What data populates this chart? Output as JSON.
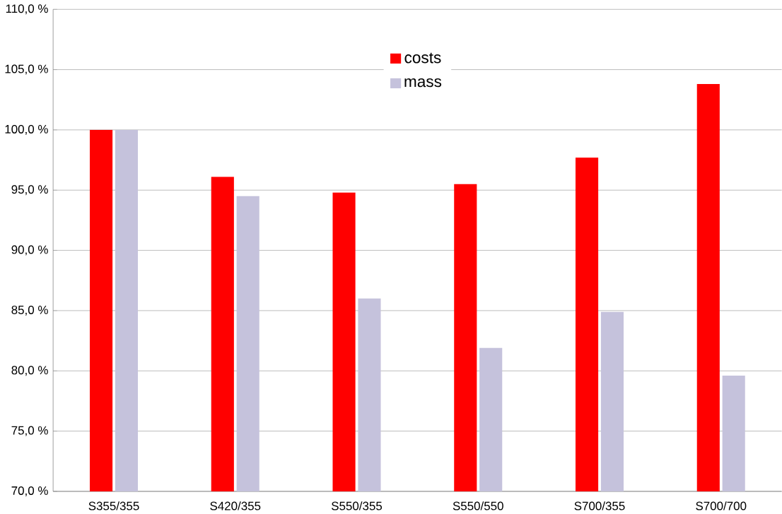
{
  "chart_data": {
    "type": "bar",
    "categories": [
      "S355/355",
      "S420/355",
      "S550/355",
      "S550/550",
      "S700/355",
      "S700/700"
    ],
    "series": [
      {
        "name": "costs",
        "color": "#ff0000",
        "values": [
          100.0,
          96.1,
          94.8,
          95.5,
          97.7,
          103.8
        ]
      },
      {
        "name": "mass",
        "color": "#c5c2dc",
        "values": [
          100.0,
          94.5,
          86.0,
          81.9,
          84.9,
          79.6
        ]
      }
    ],
    "ylim": [
      70,
      110
    ],
    "yticks": [
      {
        "value": 70,
        "label": "70,0 %"
      },
      {
        "value": 75,
        "label": "75,0 %"
      },
      {
        "value": 80,
        "label": "80,0 %"
      },
      {
        "value": 85,
        "label": "85,0 %"
      },
      {
        "value": 90,
        "label": "90,0 %"
      },
      {
        "value": 95,
        "label": "95,0 %"
      },
      {
        "value": 100,
        "label": "100,0 %"
      },
      {
        "value": 105,
        "label": "105,0 %"
      },
      {
        "value": 110,
        "label": "110,0 %"
      }
    ],
    "grid": "y",
    "legend": "top"
  }
}
